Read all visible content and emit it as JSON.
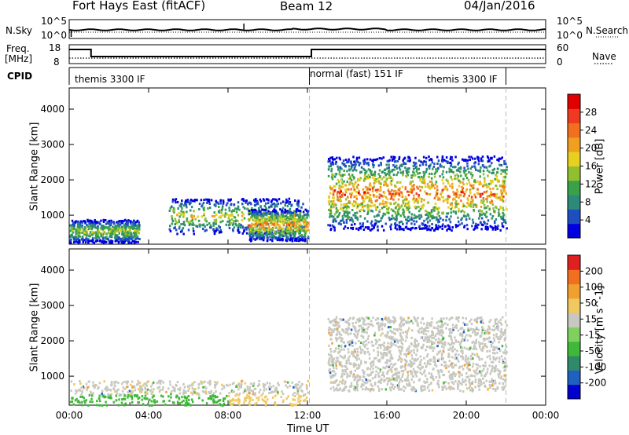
{
  "header": {
    "station": "Fort Hays East (fitACF)",
    "beam": "Beam 12",
    "date": "04/Jan/2016"
  },
  "status_panels": {
    "nsky_label": "N.Sky",
    "nsky_ticks": [
      "10^5",
      "10^0"
    ],
    "nsearch_label": "N.Search",
    "nsearch_ticks": [
      "10^5",
      "10^0"
    ],
    "freq_label_1": "Freq.",
    "freq_label_2": "[MHz]",
    "freq_ticks": [
      "18",
      "8"
    ],
    "nave_label": "Nave",
    "nave_ticks": [
      "60",
      "0"
    ],
    "cpid_label": "CPID",
    "cpid_segments": [
      "themis 3300 IF",
      "normal (fast) 151 IF",
      "themis 3300 IF"
    ]
  },
  "chart_data": [
    {
      "type": "heatmap",
      "title": "Power",
      "ylabel": "Slant Range [km]",
      "ylim": [
        180,
        4600
      ],
      "yticks": [
        "1000",
        "2000",
        "3000",
        "4000"
      ],
      "xlim_hours": [
        0,
        24
      ],
      "colorbar_label": "Power [dB]",
      "colorbar_ticks": [
        "28",
        "24",
        "20",
        "16",
        "12",
        "8",
        "4"
      ],
      "colorbar_colors": [
        "#0000e0",
        "#1e4fc0",
        "#2e8a78",
        "#3aa04a",
        "#90c030",
        "#e8d020",
        "#f0a020",
        "#f07020",
        "#ee3a20",
        "#e00000"
      ],
      "scatter_regions": [
        {
          "t0": 0.0,
          "t1": 3.5,
          "r0": 250,
          "r1": 900,
          "peak": 18
        },
        {
          "t0": 5.0,
          "t1": 11.8,
          "r0": 500,
          "r1": 1500,
          "peak": 20
        },
        {
          "t0": 9.0,
          "t1": 12.0,
          "r0": 300,
          "r1": 1200,
          "peak": 26
        },
        {
          "t0": 13.0,
          "t1": 22.0,
          "r0": 600,
          "r1": 2700,
          "peak": 28
        }
      ]
    },
    {
      "type": "heatmap",
      "title": "Velocity",
      "ylabel": "Slant Range [km]",
      "ylim": [
        180,
        4600
      ],
      "yticks": [
        "1000",
        "2000",
        "3000",
        "4000"
      ],
      "colorbar_label": "Velocity [m s^-1]",
      "colorbar_ticks": [
        "200",
        "100",
        "50",
        "15",
        "-15",
        "-50",
        "-100",
        "-200"
      ],
      "colorbar_colors": [
        "#0000d0",
        "#2060c0",
        "#2f8a6a",
        "#40b838",
        "#80d060",
        "#c8c8c0",
        "#f0c860",
        "#f0a030",
        "#f07020",
        "#e02020"
      ],
      "scatter_regions": [
        {
          "t0": 0.0,
          "t1": 12.0,
          "r0": 200,
          "r1": 900,
          "vel": -10
        },
        {
          "t0": 13.0,
          "t1": 22.0,
          "r0": 600,
          "r1": 2700,
          "vel": 0
        }
      ]
    }
  ],
  "xaxis": {
    "label": "Time UT",
    "ticks": [
      "00:00",
      "04:00",
      "08:00",
      "12:00",
      "16:00",
      "20:00",
      "00:00"
    ]
  }
}
